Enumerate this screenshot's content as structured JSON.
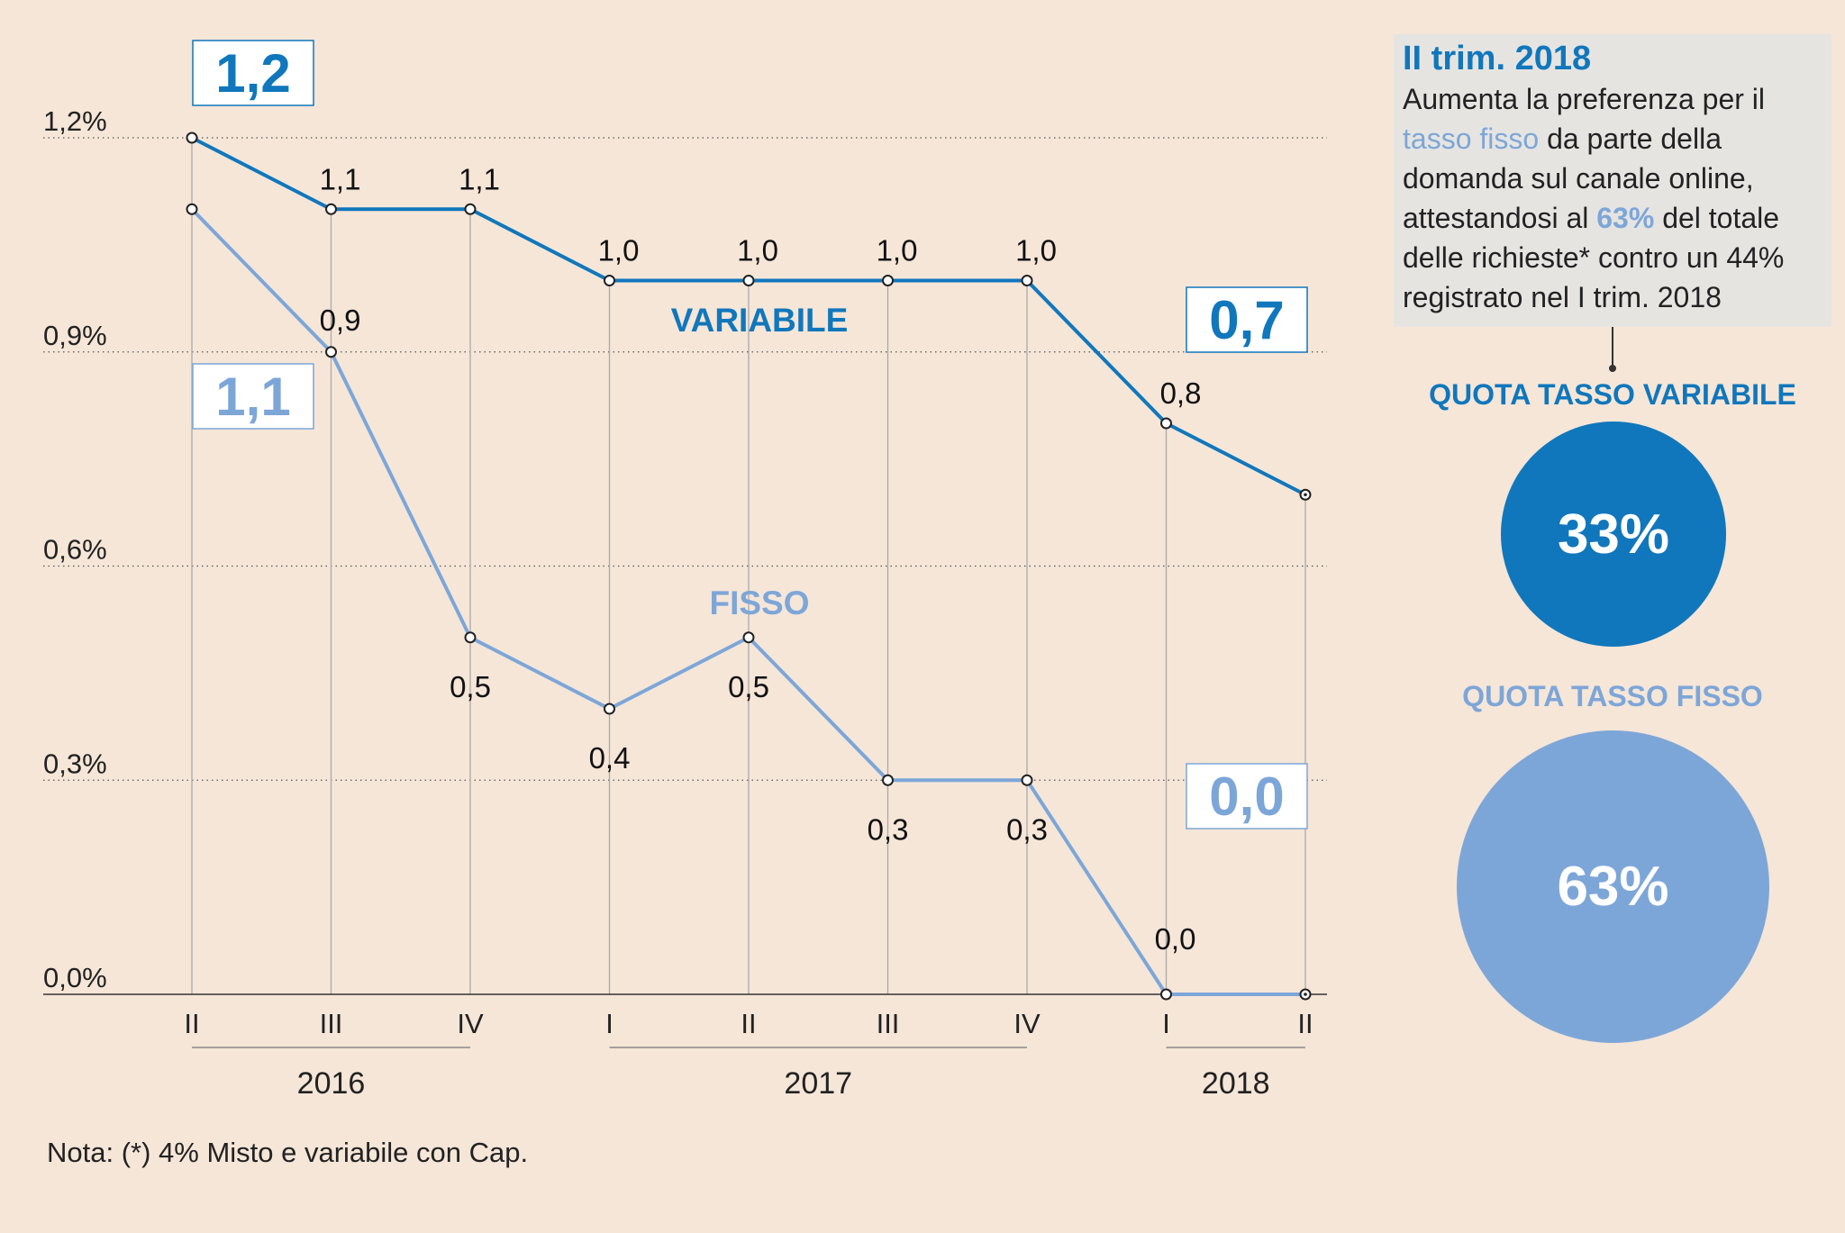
{
  "colors": {
    "variabile": "#1077bc",
    "fisso": "#7da6d8",
    "background": "#f5e6d8",
    "callout_bg": "#e6e4e1"
  },
  "chart_data": {
    "type": "line",
    "categories": [
      "II",
      "III",
      "IV",
      "I",
      "II",
      "III",
      "IV",
      "I",
      "II"
    ],
    "year_groups": [
      {
        "label": "2016",
        "from": 0,
        "to": 2
      },
      {
        "label": "2017",
        "from": 3,
        "to": 6
      },
      {
        "label": "2018",
        "from": 7,
        "to": 8
      }
    ],
    "y_ticks": [
      0.0,
      0.3,
      0.6,
      0.9,
      1.2
    ],
    "y_tick_labels": [
      "0,0%",
      "0,3%",
      "0,6%",
      "0,9%",
      "1,2%"
    ],
    "ylim": [
      0,
      1.2
    ],
    "grid": true,
    "series": [
      {
        "name": "VARIABILE",
        "values": [
          1.2,
          1.1,
          1.1,
          1.0,
          1.0,
          1.0,
          1.0,
          0.8,
          0.7
        ],
        "labels": [
          "",
          "1,1",
          "1,1",
          "1,0",
          "1,0",
          "1,0",
          "1,0",
          "0,8",
          ""
        ],
        "start_label": "1,2",
        "end_label": "0,7"
      },
      {
        "name": "FISSO",
        "values": [
          1.1,
          0.9,
          0.5,
          0.4,
          0.5,
          0.3,
          0.3,
          0.0,
          0.0
        ],
        "labels": [
          "",
          "0,9",
          "0,5",
          "0,4",
          "0,5",
          "0,3",
          "0,3",
          "0,0",
          ""
        ],
        "start_label": "1,1",
        "end_label": "0,0"
      }
    ]
  },
  "callout": {
    "title": "II trim. 2018",
    "text_1": "Aumenta la preferenza per il ",
    "highlight_1": "tasso fisso",
    "text_2": " da parte della domanda sul canale online, attestandosi al ",
    "highlight_2": "63%",
    "text_3": " del totale delle richieste* contro un 44% registrato nel I trim. 2018"
  },
  "quota_variabile": {
    "title": "QUOTA TASSO VARIABILE",
    "value": "33%"
  },
  "quota_fisso": {
    "title": "QUOTA TASSO FISSO",
    "value": "63%"
  },
  "note": "Nota: (*) 4% Misto e variabile con Cap."
}
